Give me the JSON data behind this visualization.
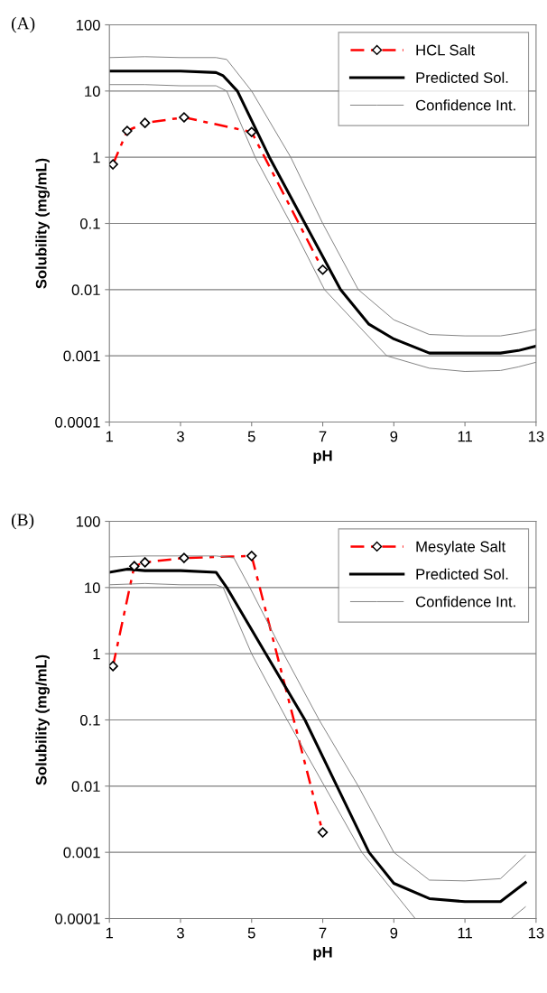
{
  "chart_data": [
    {
      "type": "line",
      "title": "(A)",
      "xlabel": "pH",
      "ylabel": "Solubility (mg/mL)",
      "log": "y",
      "grid": "y",
      "legend": "top right",
      "xlim": [
        1,
        13
      ],
      "xticks": [
        1,
        3,
        5,
        7,
        9,
        11,
        13
      ],
      "ylim": [
        0.0001,
        100
      ],
      "yticks": [
        0.0001,
        0.001,
        0.01,
        0.1,
        1,
        10,
        100
      ],
      "series": [
        {
          "name": "HCL Salt",
          "color": "#ff0000",
          "line_style": "dashed",
          "marker": "diamond",
          "x": [
            1.1,
            1.5,
            2,
            3.1,
            5,
            7
          ],
          "values": [
            0.78,
            2.5,
            3.3,
            4.0,
            2.4,
            0.02
          ]
        },
        {
          "name": "Predicted Sol.",
          "color": "#000000",
          "line_style": "solid",
          "marker": "none",
          "x": [
            1,
            2,
            3,
            4,
            4.2,
            4.6,
            5.5,
            6.5,
            7.5,
            8.3,
            9,
            10,
            11,
            12,
            12.5,
            13
          ],
          "values": [
            20,
            20,
            20,
            19,
            17,
            10,
            1,
            0.1,
            0.01,
            0.003,
            0.0018,
            0.0011,
            0.0011,
            0.0011,
            0.0012,
            0.0014
          ]
        },
        {
          "name": "Confidence Int.",
          "color": "#808080",
          "line_style": "solid",
          "marker": "none",
          "x": [
            1,
            2,
            3,
            4,
            4.3,
            5.0,
            6.1,
            7.0,
            8.0,
            9,
            10,
            11,
            12,
            12.5,
            13
          ],
          "values": [
            32,
            33,
            32,
            32,
            30,
            10,
            1,
            0.1,
            0.01,
            0.0035,
            0.0021,
            0.002,
            0.002,
            0.0022,
            0.0025
          ]
        },
        {
          "color": "#808080",
          "line_style": "solid",
          "marker": "none",
          "x": [
            1,
            2,
            3,
            4,
            4.3,
            5.1,
            6.1,
            7.05,
            8.8,
            10,
            11,
            12,
            12.5,
            13
          ],
          "values": [
            12.5,
            12.5,
            12,
            12,
            10,
            1,
            0.1,
            0.01,
            0.001,
            0.00065,
            0.00058,
            0.0006,
            0.00068,
            0.0008
          ]
        }
      ]
    },
    {
      "type": "line",
      "title": "(B)",
      "xlabel": "pH",
      "ylabel": "Solubility (mg/mL)",
      "log": "y",
      "grid": "y",
      "legend": "top right",
      "xlim": [
        1,
        13
      ],
      "xticks": [
        1,
        3,
        5,
        7,
        9,
        11,
        13
      ],
      "ylim": [
        0.0001,
        100
      ],
      "yticks": [
        0.0001,
        0.001,
        0.01,
        0.1,
        1,
        10,
        100
      ],
      "series": [
        {
          "name": "Mesylate Salt",
          "color": "#ff0000",
          "line_style": "dashed",
          "marker": "diamond",
          "x": [
            1.1,
            1.7,
            2,
            3.1,
            5,
            7
          ],
          "values": [
            0.65,
            21,
            24,
            28,
            30,
            0.002
          ]
        },
        {
          "name": "Predicted Sol.",
          "color": "#000000",
          "line_style": "solid",
          "marker": "none",
          "x": [
            1,
            1.5,
            2,
            3,
            4,
            4.3,
            5.4,
            6.5,
            7.4,
            8.3,
            9,
            10,
            11,
            12,
            12.7
          ],
          "values": [
            17,
            19,
            18,
            18,
            17,
            10,
            1,
            0.1,
            0.01,
            0.001,
            0.00034,
            0.0002,
            0.00018,
            0.00018,
            0.00035
          ]
        },
        {
          "name": "Confidence Int.",
          "color": "#808080",
          "line_style": "solid",
          "marker": "none",
          "x": [
            1,
            2,
            3,
            4,
            4.5,
            4.95,
            5.9,
            6.9,
            8.0,
            9.0,
            10,
            11,
            12,
            12.7
          ],
          "values": [
            29,
            30,
            30,
            30,
            28,
            10,
            1,
            0.1,
            0.01,
            0.001,
            0.00038,
            0.00037,
            0.0004,
            0.0009
          ]
        },
        {
          "color": "#808080",
          "line_style": "solid",
          "marker": "none",
          "x": [
            1,
            2,
            3,
            4,
            4.2,
            5.0,
            6.0,
            7.05,
            8.1,
            9.6,
            10,
            11,
            12,
            12.3,
            12.7
          ],
          "values": [
            11,
            11.5,
            11,
            11,
            10,
            1,
            0.1,
            0.01,
            0.001,
            0.0001,
            null,
            null,
            null,
            0.0001,
            0.00015
          ]
        }
      ]
    }
  ]
}
